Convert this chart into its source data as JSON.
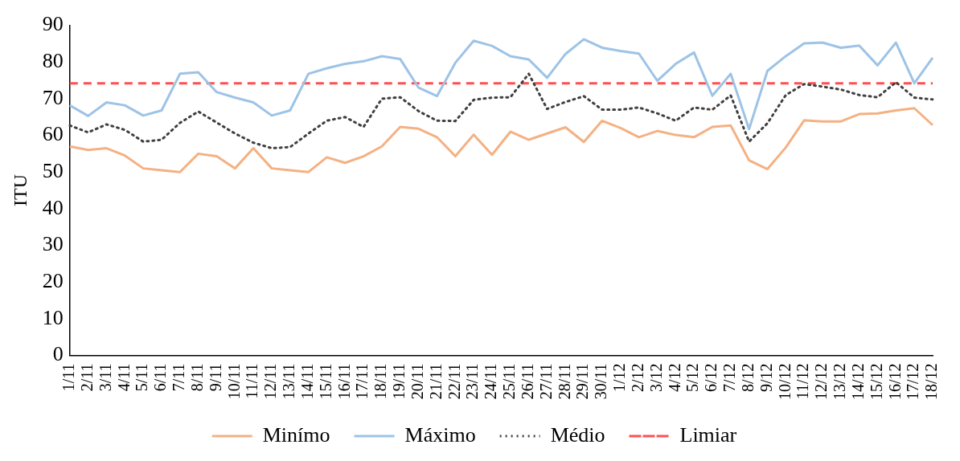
{
  "chart_data": {
    "type": "line",
    "ylabel": "ITU",
    "categories": [
      "1/11",
      "2/11",
      "3/11",
      "4/11",
      "5/11",
      "6/11",
      "7/11",
      "8/11",
      "9/11",
      "10/11",
      "11/11",
      "12/11",
      "13/11",
      "14/11",
      "15/11",
      "16/11",
      "17/11",
      "18/11",
      "19/11",
      "20/11",
      "21/11",
      "22/11",
      "23/11",
      "24/11",
      "25/11",
      "26/11",
      "27/11",
      "28/11",
      "29/11",
      "30/11",
      "1/12",
      "2/12",
      "3/12",
      "4/12",
      "5/12",
      "6/12",
      "7/12",
      "8/12",
      "9/12",
      "10/12",
      "11/12",
      "12/12",
      "13/12",
      "14/12",
      "15/12",
      "16/12",
      "17/12",
      "18/12"
    ],
    "series": [
      {
        "name": "Minímo",
        "color": "#f4b183",
        "line_style": "solid",
        "values": [
          57,
          56,
          56.5,
          54.5,
          51,
          50.5,
          50,
          55,
          54.3,
          51,
          56.5,
          51,
          50.5,
          50,
          54,
          52.5,
          54.3,
          57,
          62.3,
          61.8,
          59.5,
          54.3,
          60.2,
          54.7,
          61,
          58.8,
          60.5,
          62.2,
          58.2,
          64,
          62,
          59.5,
          61.2,
          60.1,
          59.5,
          62.3,
          62.7,
          53.2,
          50.8,
          56.7,
          64.1,
          63.8,
          63.8,
          65.8,
          66,
          66.8,
          67.4,
          62.8
        ]
      },
      {
        "name": "Máximo",
        "color": "#9dc3e6",
        "line_style": "solid",
        "values": [
          68.2,
          65.3,
          69,
          68.2,
          65.4,
          66.8,
          76.8,
          77.2,
          71.8,
          70.3,
          69,
          65.4,
          66.8,
          76.8,
          78.3,
          79.5,
          80.2,
          81.6,
          80.8,
          73,
          70.7,
          79.8,
          85.8,
          84.4,
          81.6,
          80.7,
          75.7,
          82.2,
          86.2,
          83.9,
          83,
          82.3,
          74.9,
          79.5,
          82.6,
          70.8,
          76.8,
          61.7,
          77.6,
          81.6,
          85.1,
          85.3,
          83.9,
          84.5,
          79.1,
          85.3,
          74.2,
          81.2
        ]
      },
      {
        "name": "Médio",
        "color": "#404040",
        "line_style": "dotted",
        "values": [
          62.7,
          60.8,
          63,
          61.5,
          58.3,
          58.8,
          63.4,
          66.5,
          63.5,
          60.5,
          58,
          56.5,
          56.8,
          60.5,
          64,
          65,
          62.3,
          70,
          70.4,
          66.6,
          64,
          63.9,
          69.7,
          70.3,
          70.4,
          76.8,
          67.2,
          69.1,
          70.7,
          67,
          67,
          67.6,
          66,
          64,
          67.6,
          67,
          70.9,
          58.3,
          63.3,
          71,
          74,
          73.3,
          72.5,
          71,
          70.4,
          74.5,
          70.3,
          69.8
        ]
      },
      {
        "name": "Limiar",
        "color": "#ff5050",
        "line_style": "dashed",
        "values": [
          74.2,
          74.2,
          74.2,
          74.2,
          74.2,
          74.2,
          74.2,
          74.2,
          74.2,
          74.2,
          74.2,
          74.2,
          74.2,
          74.2,
          74.2,
          74.2,
          74.2,
          74.2,
          74.2,
          74.2,
          74.2,
          74.2,
          74.2,
          74.2,
          74.2,
          74.2,
          74.2,
          74.2,
          74.2,
          74.2,
          74.2,
          74.2,
          74.2,
          74.2,
          74.2,
          74.2,
          74.2,
          74.2,
          74.2,
          74.2,
          74.2,
          74.2,
          74.2,
          74.2,
          74.2,
          74.2,
          74.2,
          74.2
        ]
      }
    ],
    "ylim": [
      0,
      90
    ],
    "yticks": [
      0,
      10,
      20,
      30,
      40,
      50,
      60,
      70,
      80,
      90
    ],
    "grid": false,
    "legend": "bottom",
    "marker": "none"
  }
}
